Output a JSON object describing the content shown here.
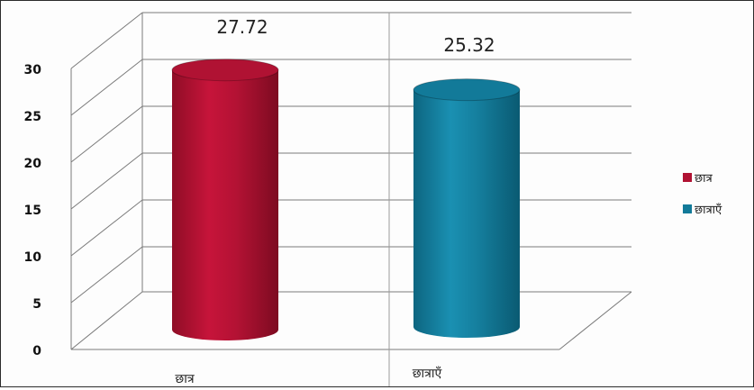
{
  "chart_data": {
    "type": "bar",
    "style": "3d-cylinder",
    "categories": [
      "छात्र",
      "छात्राएँ"
    ],
    "values": [
      27.72,
      25.32
    ],
    "data_labels": [
      "27.72",
      "25.32"
    ],
    "ylim": [
      0,
      30
    ],
    "yticks": [
      "0",
      "5",
      "10",
      "15",
      "20",
      "25",
      "30"
    ],
    "grid": true,
    "legend": {
      "position": "right",
      "entries": [
        {
          "label": "छात्र",
          "color": "#b01233"
        },
        {
          "label": "छात्राएँ",
          "color": "#127a99"
        }
      ]
    },
    "title": "",
    "xlabel": "",
    "ylabel": ""
  }
}
